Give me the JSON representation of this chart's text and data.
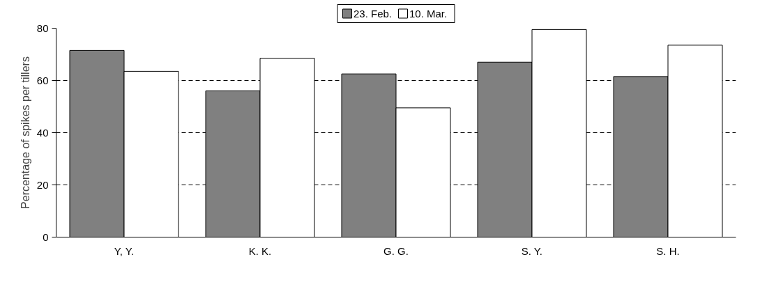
{
  "chart_data": {
    "type": "bar",
    "ylabel": "Percentage of spikes per tillers",
    "categories": [
      "Y, Y.",
      "K. K.",
      "G. G.",
      "S. Y.",
      "S. H."
    ],
    "series": [
      {
        "name": "23. Feb.",
        "color": "#808080",
        "values": [
          71.5,
          56,
          62.5,
          67,
          61.5
        ]
      },
      {
        "name": "10. Mar.",
        "color": "#ffffff",
        "values": [
          63.5,
          68.5,
          49.5,
          79.5,
          73.5
        ]
      }
    ],
    "ylim": [
      0,
      80
    ],
    "yticks": [
      0,
      20,
      40,
      60,
      80
    ],
    "grid": "y",
    "legend": "top"
  }
}
